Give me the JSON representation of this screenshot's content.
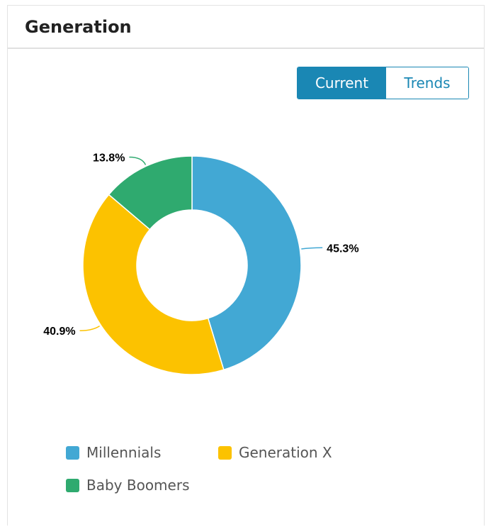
{
  "card": {
    "title": "Generation"
  },
  "toggle": {
    "current_label": "Current",
    "trends_label": "Trends",
    "selected": "Current"
  },
  "chart_data": {
    "type": "pie",
    "donut": true,
    "categories": [
      "Millennials",
      "Generation X",
      "Baby Boomers"
    ],
    "values": [
      45.3,
      40.9,
      13.8
    ],
    "value_labels": [
      "45.3%",
      "40.9%",
      "13.8%"
    ],
    "unit": "%",
    "colors": [
      "#42a8d4",
      "#fcc200",
      "#2faa6f"
    ],
    "legend_placement": "bottom-left"
  }
}
